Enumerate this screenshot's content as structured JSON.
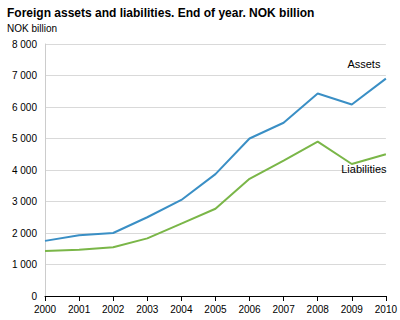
{
  "chart_data": {
    "type": "line",
    "title": "Foreign assets and liabilities. End of year. NOK billion",
    "y_label": "NOK billion",
    "categories": [
      "2000",
      "2001",
      "2002",
      "2003",
      "2004",
      "2005",
      "2006",
      "2007",
      "2008",
      "2009",
      "2010"
    ],
    "series": [
      {
        "name": "Assets",
        "color": "#3a8fc5",
        "values": [
          1750,
          1930,
          2000,
          2500,
          3050,
          3870,
          5000,
          5500,
          6430,
          6080,
          6900
        ]
      },
      {
        "name": "Liabilities",
        "color": "#7ab648",
        "values": [
          1430,
          1470,
          1550,
          1830,
          2300,
          2770,
          3720,
          4300,
          4900,
          4190,
          4500
        ]
      }
    ],
    "ylim": [
      0,
      8000
    ],
    "yticks": [
      0,
      {
        "value": 1000,
        "label": "1 000"
      },
      {
        "value": 2000,
        "label": "2 000"
      },
      {
        "value": 3000,
        "label": "3 000"
      },
      {
        "value": 4000,
        "label": "4 000"
      },
      {
        "value": 5000,
        "label": "5 000"
      },
      {
        "value": 6000,
        "label": "6 000"
      },
      {
        "value": 7000,
        "label": "7 000"
      },
      {
        "value": 8000,
        "label": "8 000"
      }
    ],
    "grid": true
  }
}
